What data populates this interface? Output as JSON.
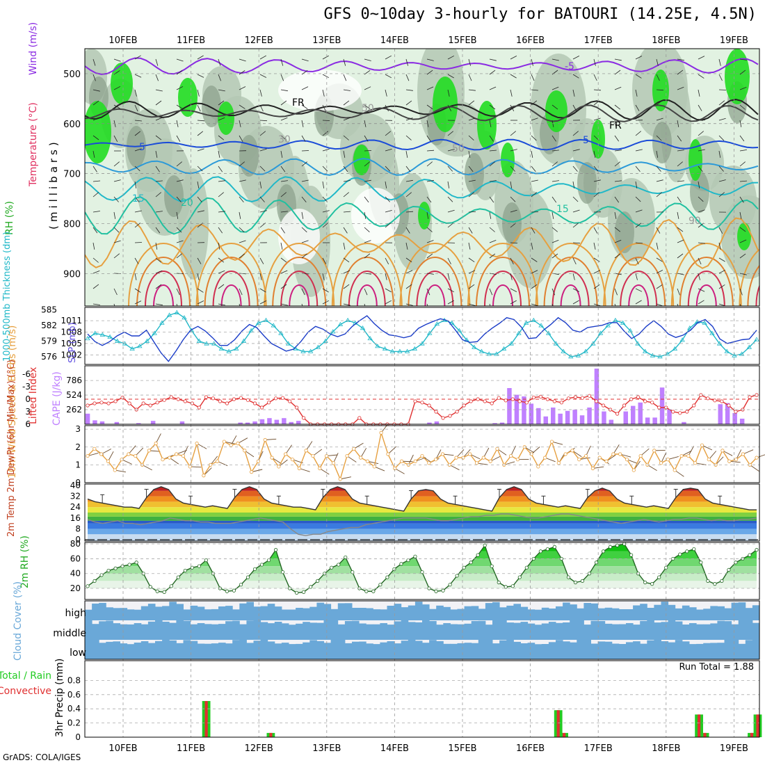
{
  "title": "GFS 0~10day 3-hourly for BATOURI (14.25E, 4.5N)",
  "credit": "GrADS: COLA/IGES",
  "dates": [
    "10FEB",
    "11FEB",
    "12FEB",
    "13FEB",
    "14FEB",
    "15FEB",
    "16FEB",
    "17FEB",
    "18FEB",
    "19FEB"
  ],
  "colors": {
    "rh_light": "#e2f2e2",
    "rh_mid": "#b4c8b4",
    "rh_dark": "#8aa08a",
    "rh_green": "#22dd22",
    "cape": "#bf80ff",
    "lifted": "#e03030",
    "thickness": "#20b8c8",
    "slp": "#1a3cc8",
    "wind": "#e6a040",
    "rh2m": "#22cc22",
    "cloud": "#6aa8d8",
    "rain": "#22cc22",
    "conv": "#e03030"
  },
  "chart_data": [
    {
      "panel": "upper-air",
      "type": "heatmap",
      "title": "Temperature (°C) Wind (m/s) RH (%)",
      "ylabel": "(millibars)",
      "ylabel_top": "Wind (m/s)",
      "ylabel_temp": "Temperature (°C)",
      "ylabel_rh": "RH (%)",
      "yticks": [
        500,
        600,
        700,
        800,
        900
      ],
      "ylim": [
        965,
        450
      ],
      "contour_labels": [
        "-5",
        "FR",
        "FR",
        "5",
        "5",
        "15",
        "20",
        "15",
        "50",
        "50",
        "30",
        "90"
      ]
    },
    {
      "panel": "thickness-slp",
      "type": "line",
      "ylabel_left": "1000-500mb Thickness (dm)",
      "ylabel_right": "SLP (mb)",
      "left_ticks": [
        585,
        582,
        579,
        576
      ],
      "right_ticks": [
        1011,
        1008,
        1005,
        1002
      ],
      "series": [
        {
          "name": "Thickness",
          "axis": "left",
          "ylim": [
            574.5,
            585.5
          ],
          "values": [
            579.5,
            580.5,
            580.2,
            579.8,
            579,
            578.5,
            577.5,
            578,
            579,
            580.5,
            582.5,
            584,
            584.5,
            583.5,
            581,
            579,
            578.5,
            578.5,
            577.5,
            577,
            577.5,
            579,
            581,
            582.5,
            583,
            582,
            580.5,
            578.5,
            577.5,
            577,
            577,
            577.8,
            579,
            580.8,
            582.2,
            583,
            582.5,
            581.5,
            579.5,
            578,
            577.5,
            577,
            577,
            577,
            577.5,
            578.5,
            580.5,
            582.3,
            583,
            582.5,
            581,
            579.2,
            577.8,
            577,
            576.5,
            576.5,
            577.5,
            578.5,
            580.5,
            582.5,
            583,
            582,
            580.5,
            578.5,
            577,
            576,
            576.2,
            577,
            578.5,
            580.5,
            582,
            583,
            582.5,
            581,
            578.5,
            577,
            576.2,
            576,
            576.5,
            577.5,
            579.2,
            581.5,
            582.7,
            582.5,
            580.5,
            578.5,
            577,
            576.2,
            576.5,
            577.8,
            579.3
          ]
        },
        {
          "name": "SLP",
          "axis": "right",
          "ylim": [
            999.5,
            1014.5
          ],
          "values": [
            1007.5,
            1005.5,
            1004.5,
            1005.5,
            1007,
            1008,
            1007,
            1007,
            1008.5,
            1005.5,
            1002.5,
            1000.3,
            1003,
            1006,
            1008.5,
            1009.5,
            1008.3,
            1006.5,
            1004.5,
            1004.5,
            1006,
            1008.3,
            1010,
            1009.2,
            1007,
            1005,
            1004,
            1003,
            1003.5,
            1005.5,
            1008,
            1009.5,
            1008.8,
            1007.5,
            1006.8,
            1007.5,
            1009.5,
            1011,
            1012.3,
            1010.2,
            1008.5,
            1007.3,
            1007,
            1006.5,
            1007,
            1009,
            1010,
            1010.8,
            1011.5,
            1011,
            1008.6,
            1006,
            1005.3,
            1005.5,
            1007.5,
            1009,
            1010.3,
            1011.8,
            1011.3,
            1009.3,
            1006.3,
            1006.5,
            1008.5,
            1010,
            1011.8,
            1010.5,
            1008.5,
            1008,
            1009.2,
            1009.5,
            1009.8,
            1010.5,
            1010.5,
            1008.2,
            1006.3,
            1007.5,
            1009.5,
            1011,
            1009.5,
            1007.5,
            1006.6,
            1007.2,
            1008.5,
            1010.5,
            1011.3,
            1009.5,
            1006.2,
            1005,
            1005.5,
            1006,
            1006.2,
            1008.5
          ]
        }
      ]
    },
    {
      "panel": "cape-lifted",
      "type": "bar",
      "ylabel_left": "Lifted Index",
      "ylabel_right": "CAPE (J/kg)",
      "left_ticks": [
        "-6",
        "-3",
        "0",
        "3",
        "6"
      ],
      "right_ticks": [
        "786",
        "524",
        "262"
      ],
      "series": [
        {
          "name": "CAPE",
          "type": "bar",
          "ylim": [
            0,
            1000
          ],
          "values": [
            190,
            70,
            50,
            0,
            40,
            0,
            0,
            20,
            0,
            60,
            0,
            0,
            0,
            50,
            0,
            0,
            0,
            0,
            0,
            0,
            0,
            30,
            30,
            50,
            90,
            110,
            80,
            110,
            40,
            60,
            0,
            0,
            0,
            0,
            0,
            0,
            0,
            0,
            0,
            0,
            0,
            0,
            0,
            0,
            0,
            0,
            0,
            30,
            50,
            0,
            0,
            0,
            0,
            0,
            0,
            0,
            20,
            30,
            650,
            530,
            500,
            370,
            290,
            140,
            300,
            190,
            240,
            260,
            160,
            300,
            1000,
            230,
            80,
            0,
            230,
            330,
            390,
            120,
            120,
            660,
            270,
            0,
            40,
            0,
            0,
            0,
            0,
            360,
            380,
            200,
            100,
            0,
            0
          ]
        },
        {
          "name": "Lifted Index",
          "type": "line",
          "ylim": [
            6,
            -8
          ],
          "values": [
            1.5,
            1.0,
            0.8,
            1.0,
            0.5,
            -0.4,
            1.0,
            2.5,
            1.0,
            1.5,
            0.8,
            0.2,
            -0.5,
            0.0,
            0.5,
            1.0,
            2.0,
            -0.5,
            -0.2,
            0.5,
            1.0,
            0.0,
            -0.3,
            0.2,
            1.0,
            2.0,
            0.8,
            -0.2,
            -0.3,
            0.5,
            2.0,
            4.5,
            6.0,
            6.0,
            6.0,
            6.0,
            6.0,
            6.0,
            6.0,
            4.5,
            6.0,
            6.0,
            6.0,
            6.0,
            6.0,
            6.0,
            6.0,
            0.5,
            0.8,
            1.5,
            3.0,
            4.5,
            4.0,
            3.0,
            1.5,
            0.5,
            0.0,
            0.5,
            1.0,
            -0.3,
            0.3,
            0.0,
            0.5,
            0.8,
            -0.4,
            -0.6,
            0.0,
            0.5,
            0.8,
            -0.2,
            -0.5,
            -0.3,
            -0.8,
            0.5,
            1.5,
            2.5,
            3.5,
            1.5,
            0.0,
            -0.5,
            0.5,
            0.8,
            2.0,
            2.0,
            3.0,
            3.3,
            3.0,
            1.5,
            -1.0,
            -0.2,
            0.3,
            0.5,
            1.5,
            3.0,
            2.5,
            -0.5,
            -1.0
          ]
        }
      ]
    },
    {
      "panel": "wind10m",
      "type": "line",
      "ylabel": "10m Wind Speed & Barbs (m/s)",
      "yticks": [
        3,
        2,
        1,
        0
      ],
      "ylim": [
        0,
        3.2
      ],
      "values": [
        1.5,
        1.9,
        1.6,
        1.2,
        0.7,
        1.3,
        1.6,
        1.5,
        1.0,
        1.8,
        2.2,
        1.3,
        1.4,
        1.6,
        1.5,
        0.9,
        2.2,
        0.4,
        1.0,
        1.2,
        2.3,
        2.1,
        2.2,
        1.8,
        0.6,
        1.2,
        2.4,
        1.4,
        0.9,
        1.6,
        1.3,
        0.8,
        1.8,
        1.5,
        0.8,
        1.5,
        1.1,
        0.2,
        1.5,
        1.9,
        1.4,
        1.2,
        0.9,
        2.8,
        1.6,
        0.8,
        1.2,
        1.0,
        1.2,
        1.5,
        1.1,
        1.3,
        1.6,
        1.0,
        1.4,
        1.4,
        1.6,
        1.1,
        1.4,
        1.2,
        1.9,
        1.0,
        1.5,
        1.3,
        2.0,
        1.6,
        0.9,
        1.4,
        2.3,
        1.1,
        1.6,
        1.8,
        1.3,
        1.5,
        0.8,
        1.4,
        1.2,
        1.6,
        1.6,
        1.3,
        0.7,
        1.5,
        1.0,
        1.8,
        1.1,
        1.3,
        0.7,
        1.5,
        1.5,
        1.1,
        2.1,
        1.3,
        1.0,
        1.8,
        1.2,
        1.3,
        1.6,
        1.0,
        1.4
      ]
    },
    {
      "panel": "temp2m",
      "type": "area",
      "ylabel": "2m Temp 2m DewPt (6hr Min/Max) (°C)",
      "yticks": [
        40,
        32,
        24,
        16,
        8,
        0
      ],
      "ylim": [
        -1,
        41
      ],
      "series": [
        {
          "name": "2m Temp",
          "values": [
            30,
            28,
            27,
            26,
            25,
            24,
            24,
            23,
            31,
            37,
            39,
            37,
            30,
            27,
            26,
            25,
            24,
            25,
            24,
            23,
            31,
            37,
            39,
            37,
            30,
            27,
            26,
            25,
            24,
            24,
            23,
            22,
            31,
            37,
            39,
            37,
            30,
            27,
            26,
            25,
            24,
            23,
            22,
            21,
            30,
            36,
            37,
            36,
            30,
            27,
            26,
            25,
            24,
            23,
            22,
            21,
            31,
            37,
            39,
            37,
            30,
            27,
            26,
            25,
            24,
            25,
            24,
            23,
            31,
            36,
            38,
            36,
            30,
            27,
            26,
            25,
            24,
            25,
            24,
            23,
            31,
            37,
            38,
            37,
            30,
            27,
            26,
            25,
            24,
            23,
            22,
            22
          ]
        },
        {
          "name": "2m DewPt",
          "values": [
            15,
            13,
            12,
            13,
            14,
            12,
            12,
            11,
            12,
            13,
            14,
            16,
            15,
            14,
            14,
            13,
            13,
            12,
            12,
            12,
            13,
            14,
            15,
            16,
            15,
            14,
            13,
            8,
            4,
            3,
            4,
            4,
            6,
            7,
            8,
            9,
            9,
            11,
            12,
            13,
            14,
            15,
            16,
            16,
            16,
            16,
            15,
            14,
            14,
            15,
            16,
            17,
            17,
            18,
            18,
            19,
            19,
            18,
            17,
            16,
            16,
            17,
            18,
            19,
            19,
            18,
            17,
            16,
            15,
            14,
            13,
            12,
            13,
            14,
            15,
            14,
            13,
            14,
            15,
            15,
            16,
            16,
            15,
            14,
            15,
            14,
            14,
            15,
            15,
            16
          ]
        }
      ]
    },
    {
      "panel": "rh2m",
      "type": "area",
      "ylabel": "2m RH (%)",
      "yticks": [
        80,
        60,
        40,
        20
      ],
      "ylim": [
        5,
        82
      ],
      "values": [
        23,
        30,
        38,
        44,
        47,
        50,
        52,
        55,
        40,
        22,
        16,
        15,
        23,
        35,
        44,
        48,
        50,
        58,
        40,
        20,
        16,
        17,
        25,
        35,
        46,
        52,
        58,
        72,
        42,
        20,
        14,
        15,
        22,
        30,
        40,
        48,
        52,
        62,
        42,
        20,
        16,
        16,
        25,
        35,
        46,
        53,
        58,
        63,
        42,
        20,
        16,
        17,
        25,
        37,
        48,
        55,
        65,
        78,
        50,
        28,
        22,
        23,
        35,
        48,
        60,
        70,
        73,
        76,
        60,
        35,
        28,
        30,
        40,
        55,
        70,
        76,
        78,
        80,
        65,
        40,
        28,
        26,
        35,
        48,
        60,
        66,
        70,
        73,
        55,
        30,
        26,
        30,
        45,
        55,
        60,
        65,
        72
      ]
    },
    {
      "panel": "cloud",
      "type": "heatmap",
      "ylabel": "Cloud Cover (%)",
      "levels": [
        "high",
        "middle",
        "low"
      ]
    },
    {
      "panel": "precip",
      "type": "bar",
      "ylabel": "3hr Precip (mm)",
      "legend": [
        "Total / Rain",
        "Convective"
      ],
      "yticks": [
        0.8,
        0.6,
        0.4,
        0.2,
        0
      ],
      "ylim": [
        0,
        1.0
      ],
      "annotation": "Run Total = 1.88",
      "values": [
        0,
        0,
        0,
        0,
        0,
        0,
        0,
        0,
        0,
        0,
        0,
        0,
        0,
        0,
        0,
        0,
        0,
        0,
        0,
        0,
        0.51,
        0,
        0,
        0,
        0,
        0,
        0,
        0,
        0,
        0,
        0,
        0.06,
        0,
        0,
        0,
        0,
        0,
        0,
        0,
        0,
        0,
        0,
        0,
        0,
        0,
        0,
        0,
        0,
        0,
        0,
        0,
        0,
        0,
        0,
        0,
        0,
        0,
        0,
        0,
        0,
        0,
        0,
        0,
        0,
        0,
        0,
        0,
        0,
        0,
        0,
        0,
        0,
        0,
        0,
        0,
        0,
        0,
        0,
        0,
        0,
        0.38,
        0.06,
        0,
        0,
        0,
        0,
        0,
        0,
        0,
        0,
        0,
        0,
        0,
        0,
        0,
        0,
        0,
        0,
        0,
        0,
        0,
        0,
        0,
        0,
        0.32,
        0.06,
        0,
        0,
        0,
        0,
        0,
        0,
        0,
        0.06,
        0.32
      ]
    }
  ]
}
